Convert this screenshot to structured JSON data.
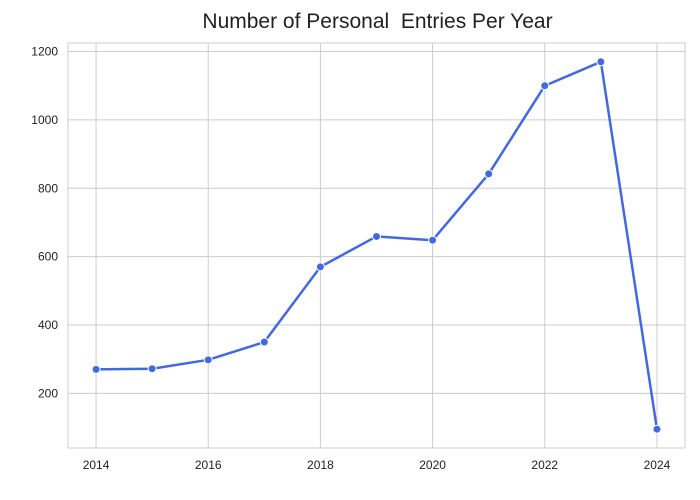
{
  "chart_data": {
    "type": "line",
    "title": "Number of Personal  Entries Per Year",
    "xlabel": "",
    "ylabel": "",
    "x": [
      2014,
      2015,
      2016,
      2017,
      2018,
      2019,
      2020,
      2021,
      2022,
      2023,
      2024
    ],
    "series": [
      {
        "values": [
          270,
          272,
          298,
          350,
          570,
          659,
          648,
          842,
          1100,
          1170,
          95
        ]
      }
    ],
    "xlim": [
      2013.5,
      2024.5
    ],
    "ylim": [
      40,
      1225
    ],
    "xticks": [
      2014,
      2016,
      2018,
      2020,
      2022,
      2024
    ],
    "yticks": [
      200,
      400,
      600,
      800,
      1000,
      1200
    ],
    "grid": true,
    "legend": "none",
    "colors": {
      "line": "#4169e1",
      "grid": "#cccccc",
      "frame": "#cccccc"
    }
  }
}
